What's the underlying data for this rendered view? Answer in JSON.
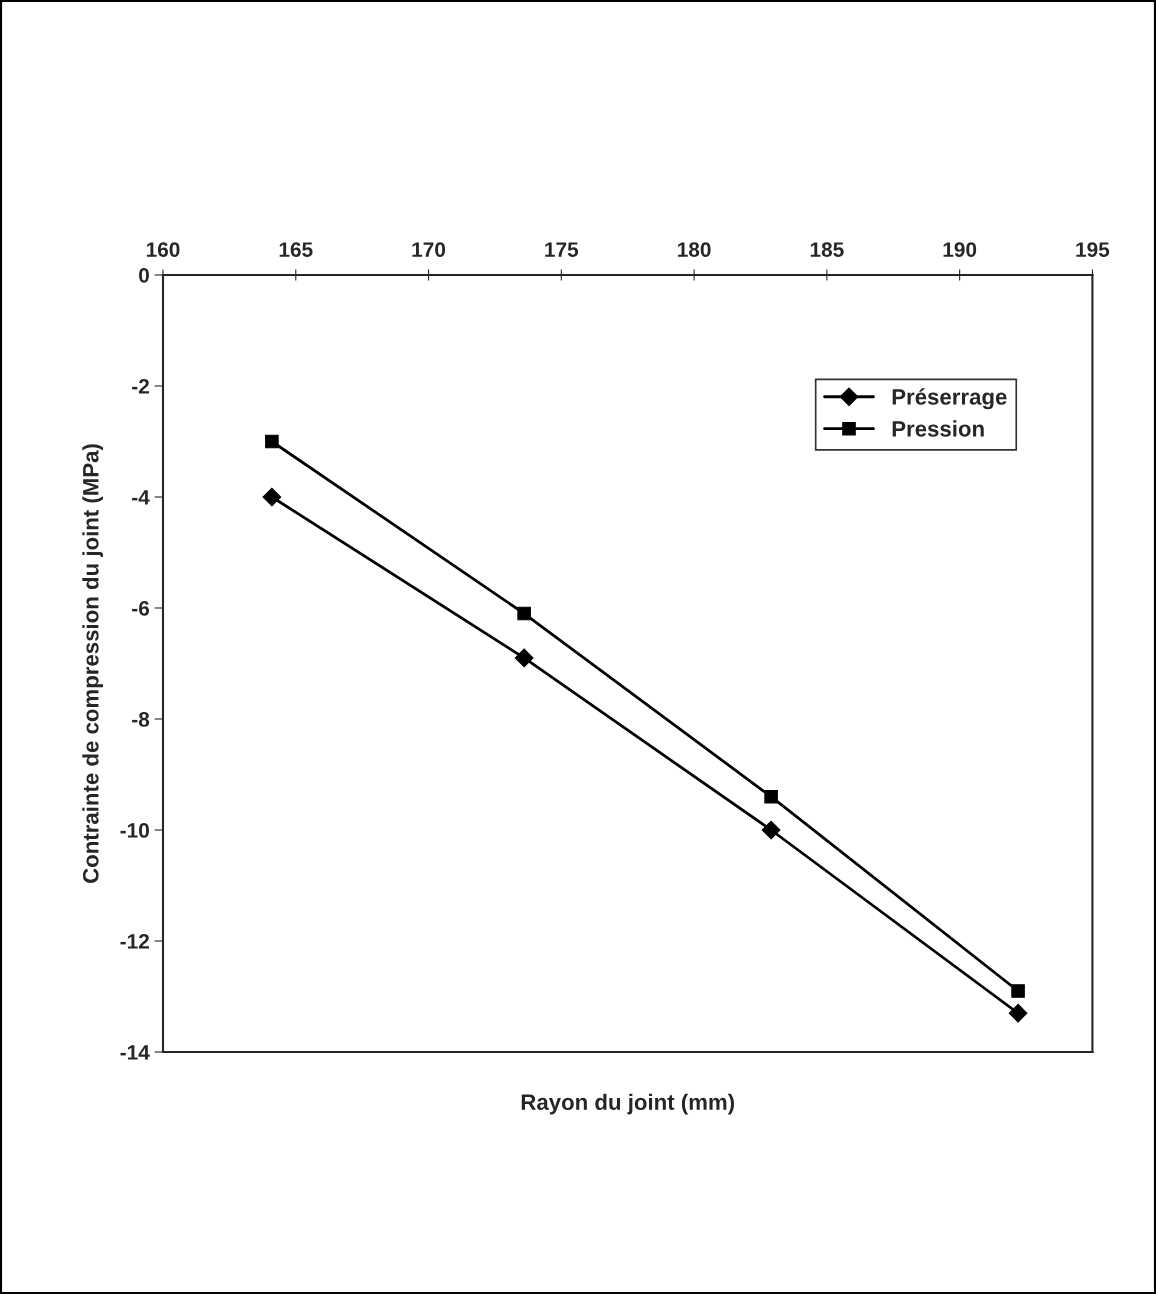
{
  "chart_data": {
    "type": "line",
    "xlabel": "Rayon du joint (mm)",
    "ylabel": "Contrainte de compression du joint (MPa)",
    "x": [
      164.1,
      173.6,
      182.9,
      192.2
    ],
    "series": [
      {
        "name": "Préserrage",
        "color": "#000000",
        "marker": "diamond",
        "values": [
          -4.0,
          -6.9,
          -10.0,
          -13.3
        ]
      },
      {
        "name": "Pression",
        "color": "#000000",
        "marker": "square",
        "values": [
          -3.0,
          -6.1,
          -9.4,
          -12.9
        ]
      }
    ],
    "xlim": [
      160,
      195
    ],
    "xticks": [
      160,
      165,
      170,
      175,
      180,
      185,
      190,
      195
    ],
    "ylim": [
      -14,
      0
    ],
    "yticks": [
      0,
      -2,
      -4,
      -6,
      -8,
      -10,
      -12,
      -14
    ],
    "grid": false,
    "legend": "top right",
    "line_style": "solid"
  }
}
